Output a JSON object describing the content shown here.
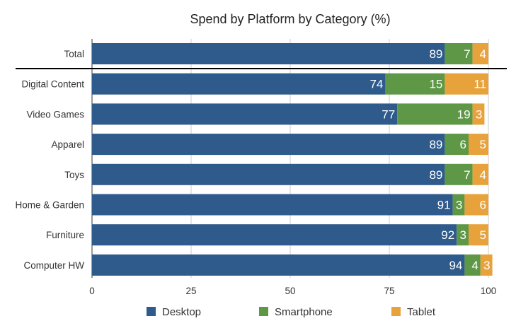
{
  "chart_data": {
    "type": "bar",
    "orientation": "horizontal",
    "stacked": true,
    "title": "Spend by Platform by Category (%)",
    "xlabel": "",
    "ylabel": "",
    "xlim": [
      0,
      100
    ],
    "xticks": [
      "0",
      "25",
      "50",
      "75",
      "100"
    ],
    "grid": true,
    "legend_position": "bottom",
    "categories": [
      "Total",
      "Digital Content",
      "Video Games",
      "Apparel",
      "Toys",
      "Home & Garden",
      "Furniture",
      "Computer HW"
    ],
    "series": [
      {
        "name": "Desktop",
        "color": "#2f5a8c",
        "values": [
          89,
          74,
          77,
          89,
          89,
          91,
          92,
          94
        ]
      },
      {
        "name": "Smartphone",
        "color": "#5e9746",
        "values": [
          7,
          15,
          19,
          6,
          7,
          3,
          3,
          4
        ]
      },
      {
        "name": "Tablet",
        "color": "#e8a23c",
        "values": [
          4,
          11,
          3,
          5,
          4,
          6,
          5,
          3
        ]
      }
    ]
  }
}
